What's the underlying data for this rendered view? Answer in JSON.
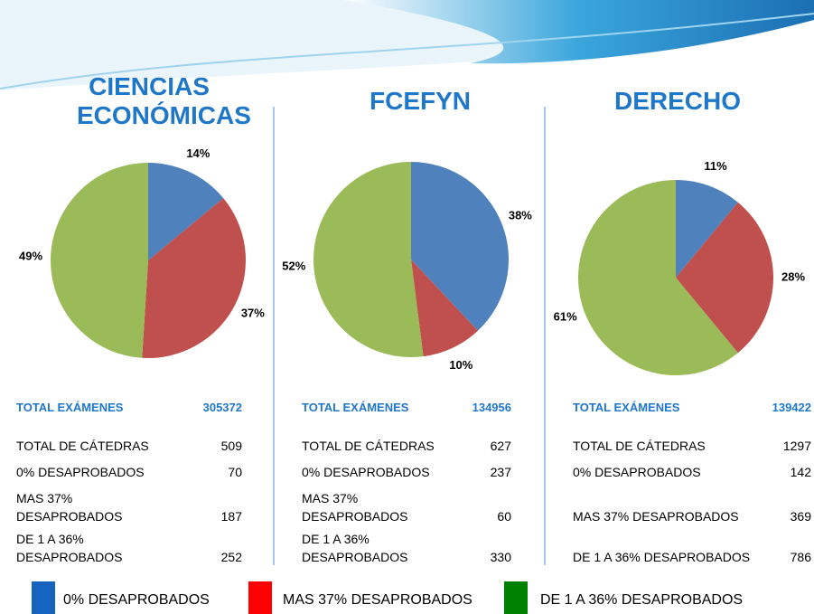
{
  "chart_data": [
    {
      "type": "pie",
      "title": "CIENCIAS ECONÓMICAS",
      "values": [
        14,
        37,
        49
      ],
      "value_labels": [
        "14%",
        "37%",
        "49%"
      ],
      "colors": [
        "#4f81bd",
        "#c0504d",
        "#9bbb59"
      ]
    },
    {
      "type": "pie",
      "title": "FCEFYN",
      "values": [
        38,
        10,
        52
      ],
      "value_labels": [
        "38%",
        "10%",
        "52%"
      ],
      "colors": [
        "#4f81bd",
        "#c0504d",
        "#9bbb59"
      ]
    },
    {
      "type": "pie",
      "title": "DERECHO",
      "values": [
        11,
        28,
        61
      ],
      "value_labels": [
        "11%",
        "28%",
        "61%"
      ],
      "colors": [
        "#4f81bd",
        "#c0504d",
        "#9bbb59"
      ]
    }
  ],
  "tables": [
    {
      "total_label": "TOTAL EXÁMENES",
      "total": 305372,
      "rows": [
        [
          "TOTAL DE CÁTEDRAS",
          509
        ],
        [
          "0% DESAPROBADOS",
          70
        ],
        [
          "MAS 37% DESAPROBADOS",
          187
        ],
        [
          "DE 1 A 36% DESAPROBADOS",
          252
        ]
      ]
    },
    {
      "total_label": "TOTAL EXÁMENES",
      "total": 134956,
      "rows": [
        [
          "TOTAL DE CÁTEDRAS",
          627
        ],
        [
          "0% DESAPROBADOS",
          237
        ],
        [
          "MAS 37% DESAPROBADOS",
          60
        ],
        [
          "DE 1 A 36% DESAPROBADOS",
          330
        ]
      ]
    },
    {
      "total_label": "TOTAL EXÁMENES",
      "total": 139422,
      "rows": [
        [
          "TOTAL DE CÁTEDRAS",
          1297
        ],
        [
          "0% DESAPROBADOS",
          142
        ],
        [
          "MAS 37% DESAPROBADOS",
          369
        ],
        [
          "DE 1 A 36% DESAPROBADOS",
          786
        ]
      ]
    }
  ],
  "legend": [
    {
      "name": "0% DESAPROBADOS",
      "color": "#1565c0"
    },
    {
      "name": "MAS 37% DESAPROBADOS",
      "color": "#ff0000"
    },
    {
      "name": "DE 1 A 36% DESAPROBADOS",
      "color": "#008000"
    }
  ]
}
